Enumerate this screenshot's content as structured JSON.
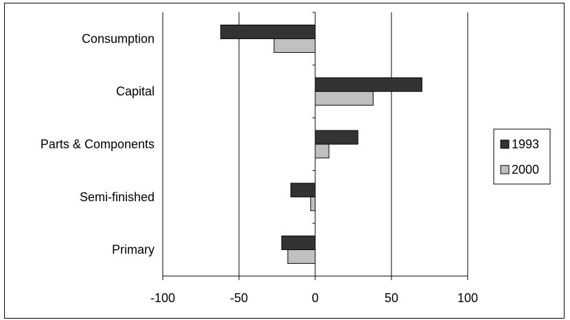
{
  "chart_data": {
    "type": "bar",
    "orientation": "horizontal",
    "categories": [
      "Consumption",
      "Capital",
      "Parts & Components",
      "Semi-finished",
      "Primary"
    ],
    "series": [
      {
        "name": "1993",
        "color": "#333333",
        "values": [
          -62,
          70,
          28,
          -16,
          -22
        ]
      },
      {
        "name": "2000",
        "color": "#c0c0c0",
        "values": [
          -27,
          38,
          9,
          -3,
          -18
        ]
      }
    ],
    "xlim": [
      -100,
      100
    ],
    "xticks": [
      -100,
      -50,
      0,
      50,
      100
    ],
    "grid": "vertical",
    "legend_position": "right"
  }
}
